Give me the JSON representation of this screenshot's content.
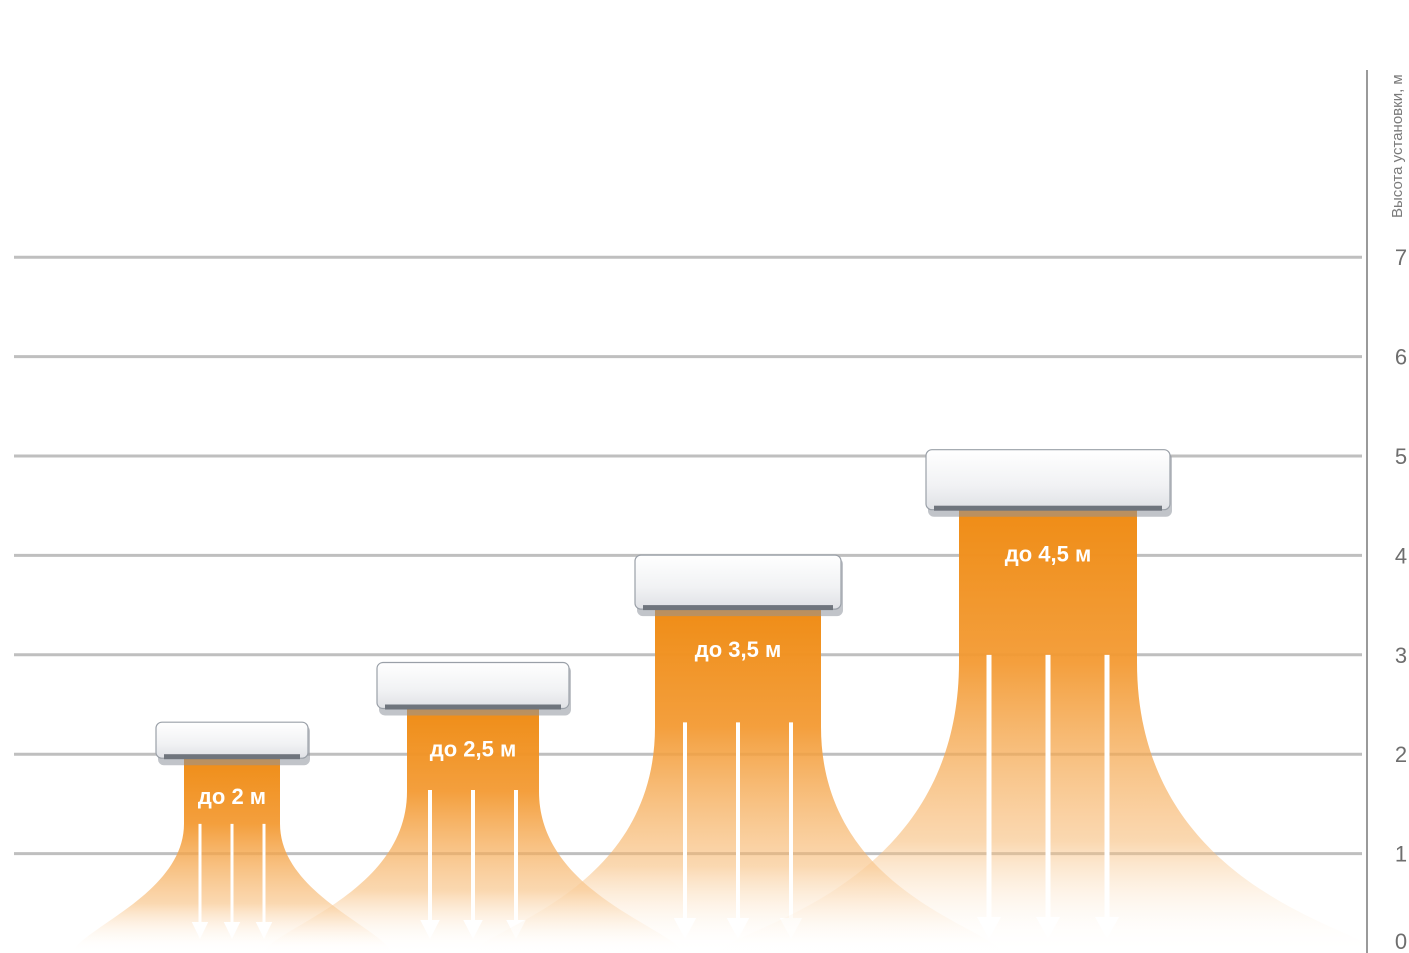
{
  "axis": {
    "title": "Высота установки, м",
    "ticks": [
      "0",
      "1",
      "2",
      "3",
      "4",
      "5",
      "6",
      "7"
    ]
  },
  "units": [
    {
      "label": "до 2 м",
      "mount_height_m": 2.0
    },
    {
      "label": "до 2,5 м",
      "mount_height_m": 2.5
    },
    {
      "label": "до 3,5 м",
      "mount_height_m": 3.5
    },
    {
      "label": "до 4,5 м",
      "mount_height_m": 4.5
    }
  ],
  "colors": {
    "airflow": "#f0901e",
    "gridline": "#bfbfbf",
    "axis": "#9a9a9a",
    "unit_body": "#f3f4f6"
  }
}
